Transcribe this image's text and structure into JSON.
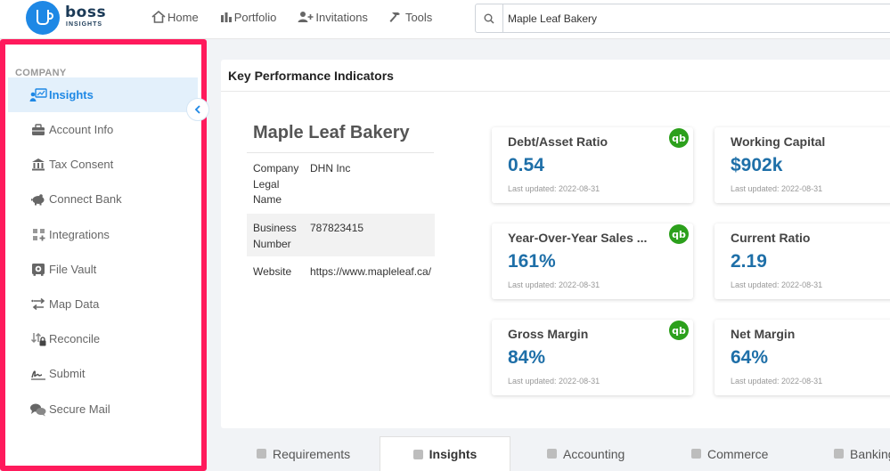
{
  "brand": {
    "name": "boss",
    "sub": "INSIGHTS"
  },
  "nav": {
    "home": "Home",
    "portfolio": "Portfolio",
    "invitations": "Invitations",
    "tools": "Tools"
  },
  "search": {
    "value": "Maple Leaf Bakery"
  },
  "sidebar": {
    "heading": "COMPANY",
    "items": [
      {
        "label": "Insights",
        "icon": "insights-icon",
        "active": true
      },
      {
        "label": "Account Info",
        "icon": "briefcase-icon"
      },
      {
        "label": "Tax Consent",
        "icon": "bank-icon"
      },
      {
        "label": "Connect Bank",
        "icon": "piggy-bank-icon"
      },
      {
        "label": "Integrations",
        "icon": "grid-plus-icon"
      },
      {
        "label": "File Vault",
        "icon": "safe-icon"
      },
      {
        "label": "Map Data",
        "icon": "map-arrows-icon"
      },
      {
        "label": "Reconcile",
        "icon": "reconcile-lock-icon"
      },
      {
        "label": "Submit",
        "icon": "signature-icon"
      },
      {
        "label": "Secure Mail",
        "icon": "chat-icon"
      }
    ]
  },
  "kpi": {
    "header": "Key Performance Indicators",
    "company": {
      "name": "Maple Leaf Bakery",
      "rows": [
        {
          "label": "Company Legal Name",
          "value": "DHN Inc"
        },
        {
          "label": "Business Number",
          "value": "787823415"
        },
        {
          "label": "Website",
          "value": "https://www.mapleleaf.ca/"
        }
      ]
    },
    "cards": [
      {
        "title": "Debt/Asset Ratio",
        "value": "0.54",
        "updated": "Last updated: 2022-08-31",
        "qb": true
      },
      {
        "title": "Working Capital",
        "value": "$902k",
        "updated": "Last updated: 2022-08-31",
        "qb": false
      },
      {
        "title": "Year-Over-Year Sales ...",
        "value": "161%",
        "updated": "Last updated: 2022-08-31",
        "qb": true
      },
      {
        "title": "Current Ratio",
        "value": "2.19",
        "updated": "Last updated: 2022-08-31",
        "qb": false
      },
      {
        "title": "Gross Margin",
        "value": "84%",
        "updated": "Last updated: 2022-08-31",
        "qb": true
      },
      {
        "title": "Net Margin",
        "value": "64%",
        "updated": "Last updated: 2022-08-31",
        "qb": false
      }
    ],
    "qb_label": "qb"
  },
  "tabs": [
    {
      "label": "Requirements",
      "active": false
    },
    {
      "label": "Insights",
      "active": true
    },
    {
      "label": "Accounting",
      "active": false
    },
    {
      "label": "Commerce",
      "active": false
    },
    {
      "label": "Banking",
      "active": false
    }
  ],
  "colors": {
    "accent": "#1e88e5",
    "kpi_value": "#1e6fa8",
    "highlight_border": "#ff1a5c",
    "qb_green": "#2ca01c"
  }
}
